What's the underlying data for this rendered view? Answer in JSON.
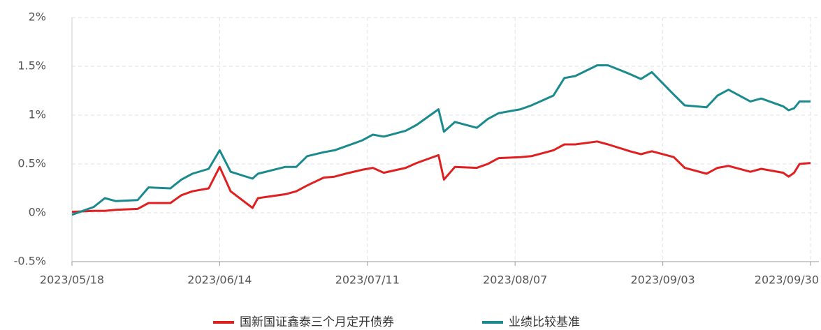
{
  "chart_data": {
    "type": "line",
    "x": [
      "2023/05/18",
      "2023/05/22",
      "2023/05/24",
      "2023/05/26",
      "2023/05/30",
      "2023/06/01",
      "2023/06/05",
      "2023/06/07",
      "2023/06/09",
      "2023/06/12",
      "2023/06/14",
      "2023/06/16",
      "2023/06/20",
      "2023/06/21",
      "2023/06/26",
      "2023/06/28",
      "2023/06/30",
      "2023/07/03",
      "2023/07/05",
      "2023/07/07",
      "2023/07/10",
      "2023/07/12",
      "2023/07/14",
      "2023/07/18",
      "2023/07/20",
      "2023/07/24",
      "2023/07/25",
      "2023/07/27",
      "2023/07/31",
      "2023/08/02",
      "2023/08/04",
      "2023/08/08",
      "2023/08/10",
      "2023/08/14",
      "2023/08/16",
      "2023/08/18",
      "2023/08/22",
      "2023/08/24",
      "2023/08/28",
      "2023/08/30",
      "2023/09/01",
      "2023/09/05",
      "2023/09/07",
      "2023/09/11",
      "2023/09/13",
      "2023/09/15",
      "2023/09/19",
      "2023/09/21",
      "2023/09/25",
      "2023/09/26",
      "2023/09/27",
      "2023/09/28",
      "2023/09/30"
    ],
    "series": [
      {
        "name": "国新国证鑫泰三个月定开债券",
        "color": "#e02020",
        "values": [
          0.01,
          0.02,
          0.02,
          0.03,
          0.04,
          0.1,
          0.1,
          0.18,
          0.22,
          0.25,
          0.47,
          0.22,
          0.05,
          0.15,
          0.19,
          0.22,
          0.28,
          0.36,
          0.37,
          0.4,
          0.44,
          0.46,
          0.41,
          0.46,
          0.51,
          0.59,
          0.34,
          0.47,
          0.46,
          0.5,
          0.56,
          0.57,
          0.58,
          0.64,
          0.7,
          0.7,
          0.73,
          0.7,
          0.63,
          0.6,
          0.63,
          0.57,
          0.46,
          0.4,
          0.46,
          0.48,
          0.42,
          0.45,
          0.41,
          0.37,
          0.41,
          0.5,
          0.51
        ]
      },
      {
        "name": "业绩比较基准",
        "color": "#1a8a8f",
        "values": [
          -0.02,
          0.06,
          0.15,
          0.12,
          0.13,
          0.26,
          0.25,
          0.34,
          0.4,
          0.45,
          0.64,
          0.42,
          0.35,
          0.4,
          0.47,
          0.47,
          0.58,
          0.62,
          0.64,
          0.68,
          0.74,
          0.8,
          0.78,
          0.84,
          0.9,
          1.06,
          0.83,
          0.93,
          0.87,
          0.96,
          1.02,
          1.06,
          1.1,
          1.2,
          1.38,
          1.4,
          1.51,
          1.51,
          1.42,
          1.37,
          1.44,
          1.21,
          1.1,
          1.08,
          1.2,
          1.26,
          1.14,
          1.17,
          1.09,
          1.05,
          1.07,
          1.14,
          1.14
        ]
      }
    ],
    "xlim": [
      "2023/05/18",
      "2023/09/30"
    ],
    "xticks": [
      "2023/05/18",
      "2023/06/14",
      "2023/07/11",
      "2023/08/07",
      "2023/09/03",
      "2023/09/30"
    ],
    "ylim": [
      -0.5,
      2
    ],
    "yticks": [
      {
        "value": -0.5,
        "label": "-0.5%"
      },
      {
        "value": 0,
        "label": "0%"
      },
      {
        "value": 0.5,
        "label": "0.5%"
      },
      {
        "value": 1,
        "label": "1%"
      },
      {
        "value": 1.5,
        "label": "1.5%"
      },
      {
        "value": 2,
        "label": "2%"
      }
    ],
    "grid": true,
    "legend": "bottom"
  }
}
